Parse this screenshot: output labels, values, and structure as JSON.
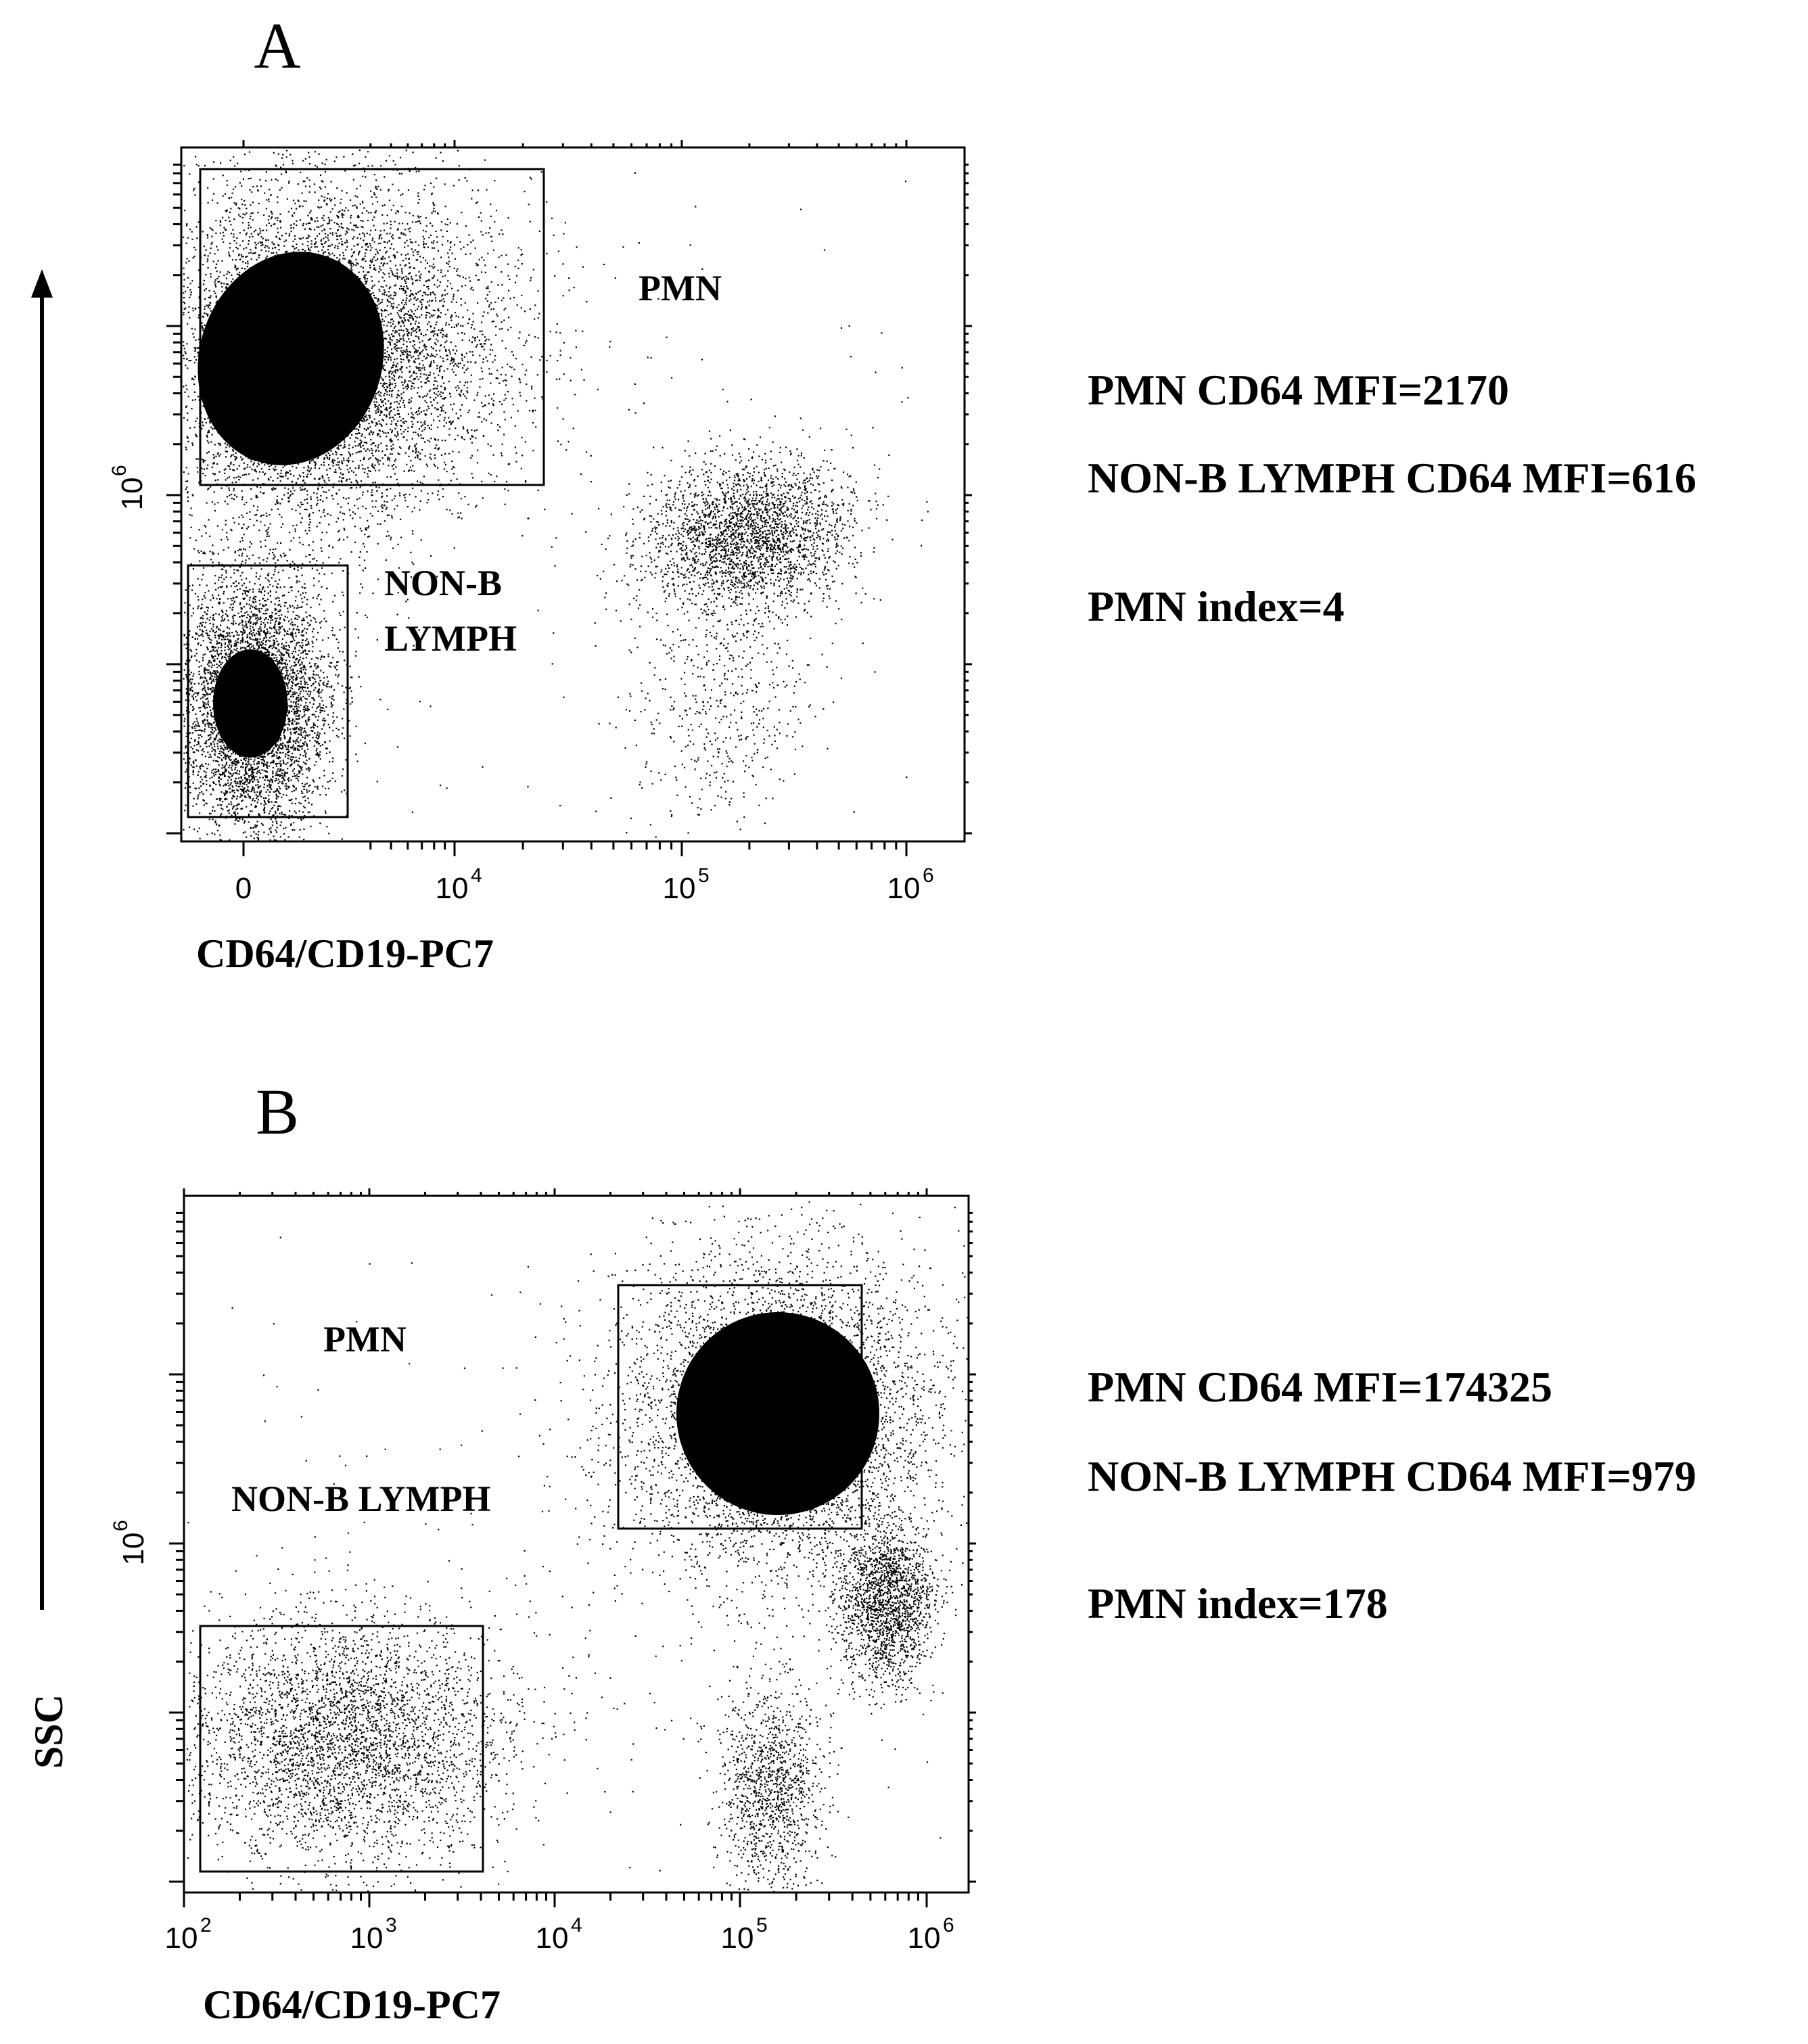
{
  "y_axis_title": "SSC",
  "chart_data": [
    {
      "type": "scatter",
      "panel_label": "A",
      "xlabel": "CD64/CD19-PC7",
      "ylabel": "SSC",
      "x_ticks": [
        {
          "value": 0,
          "base": "0",
          "exp": ""
        },
        {
          "value": 10000,
          "base": "10",
          "exp": "4"
        },
        {
          "value": 100000,
          "base": "10",
          "exp": "5"
        },
        {
          "value": 1000000,
          "base": "10",
          "exp": "6"
        }
      ],
      "y_ticks": [
        {
          "value": 1000000,
          "base": "10",
          "exp": "6"
        }
      ],
      "gates": [
        {
          "name": "PMN",
          "label": "PMN"
        },
        {
          "name": "NON-B LYMPH",
          "label_lines": [
            "NON-B",
            "LYMPH"
          ]
        }
      ],
      "stats": [
        "PMN CD64 MFI=2170",
        "NON-B  LYMPH CD64 MFI=616",
        "PMN index=4"
      ]
    },
    {
      "type": "scatter",
      "panel_label": "B",
      "xlabel": "CD64/CD19-PC7",
      "ylabel": "SSC",
      "x_ticks": [
        {
          "value": 100,
          "base": "10",
          "exp": "2"
        },
        {
          "value": 1000,
          "base": "10",
          "exp": "3"
        },
        {
          "value": 10000,
          "base": "10",
          "exp": "4"
        },
        {
          "value": 100000,
          "base": "10",
          "exp": "5"
        },
        {
          "value": 1000000,
          "base": "10",
          "exp": "6"
        }
      ],
      "y_ticks": [
        {
          "value": 1000000,
          "base": "10",
          "exp": "6"
        }
      ],
      "gates": [
        {
          "name": "PMN",
          "label": "PMN"
        },
        {
          "name": "NON-B LYMPH",
          "label": "NON-B LYMPH"
        }
      ],
      "stats": [
        "PMN CD64 MFI=174325",
        "NON-B  LYMPH CD64 MFI=979",
        "PMN index=178"
      ]
    }
  ]
}
